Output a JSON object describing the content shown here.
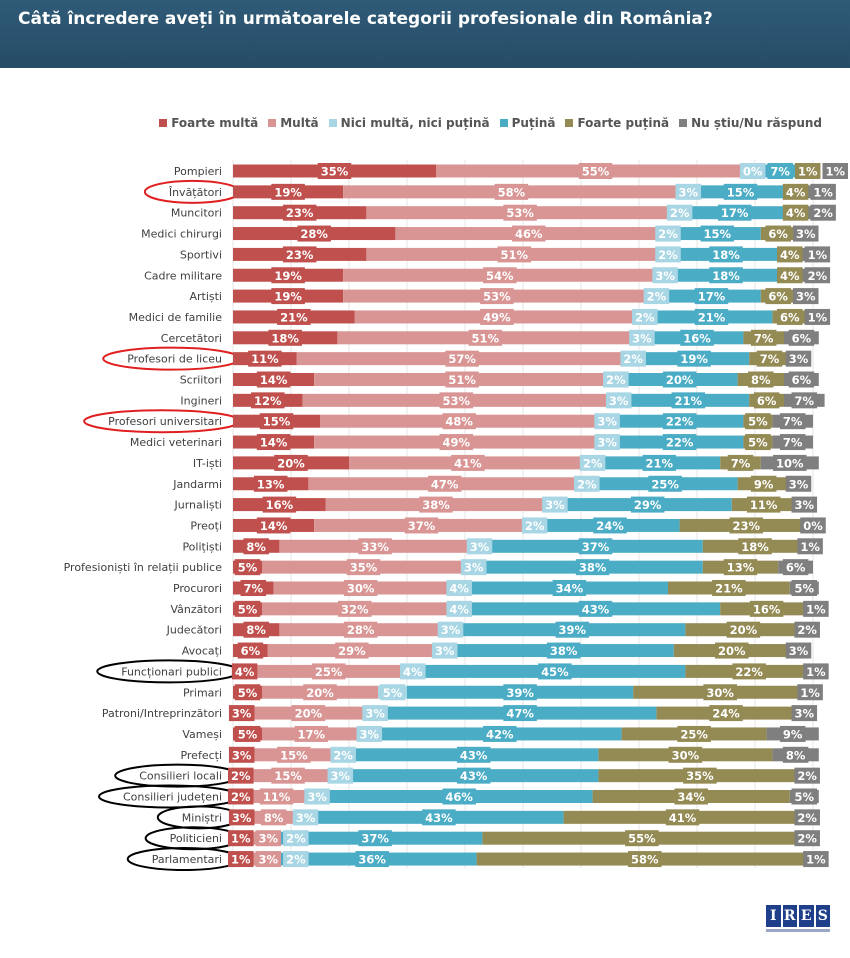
{
  "header": {
    "title": "Câtă încredere aveți în următoarele categorii profesionale din România?"
  },
  "logo": {
    "text": "IRES",
    "letters": [
      "I",
      "R",
      "E",
      "S"
    ]
  },
  "chart_data": {
    "type": "bar",
    "orientation": "horizontal",
    "stacked": true,
    "unit": "%",
    "xlim": [
      0,
      100
    ],
    "grid": true,
    "legend_position": "top-right",
    "title": "Câtă încredere aveți în următoarele categorii profesionale din România?",
    "categories": [
      "Pompieri",
      "Învățători",
      "Muncitori",
      "Medici chirurgi",
      "Sportivi",
      "Cadre militare",
      "Artiști",
      "Medici de familie",
      "Cercetători",
      "Profesori de liceu",
      "Scriitori",
      "Ingineri",
      "Profesori universitari",
      "Medici veterinari",
      "IT-iști",
      "Jandarmi",
      "Jurnaliști",
      "Preoți",
      "Polițiști",
      "Profesioniști în relații publice",
      "Procurori",
      "Vânzători",
      "Judecători",
      "Avocați",
      "Funcționari publici",
      "Primari",
      "Patroni/Intreprinzători",
      "Vameși",
      "Prefecți",
      "Consilieri locali",
      "Consilieri județeni",
      "Miniștri",
      "Politicieni",
      "Parlamentari"
    ],
    "highlights": {
      "Învățători": "#e02020",
      "Profesori de liceu": "#e02020",
      "Profesori universitari": "#e02020",
      "Funcționari publici": "#000000",
      "Consilieri locali": "#000000",
      "Consilieri județeni": "#000000",
      "Miniștri": "#000000",
      "Politicieni": "#000000",
      "Parlamentari": "#000000"
    },
    "series": [
      {
        "name": "Foarte multă",
        "color": "#c0504d",
        "values": [
          35,
          19,
          23,
          28,
          23,
          19,
          19,
          21,
          18,
          11,
          14,
          12,
          15,
          14,
          20,
          13,
          16,
          14,
          8,
          5,
          7,
          5,
          8,
          6,
          4,
          5,
          3,
          5,
          3,
          2,
          2,
          3,
          1,
          1
        ]
      },
      {
        "name": "Multă",
        "color": "#d99594",
        "values": [
          55,
          58,
          53,
          46,
          51,
          54,
          53,
          49,
          51,
          57,
          51,
          53,
          48,
          49,
          41,
          47,
          38,
          37,
          33,
          35,
          30,
          32,
          28,
          29,
          25,
          20,
          20,
          17,
          15,
          15,
          11,
          8,
          3,
          3
        ]
      },
      {
        "name": "Nici multă, nici puțină",
        "color": "#a8d6e4",
        "values": [
          0,
          3,
          2,
          2,
          2,
          3,
          2,
          2,
          3,
          2,
          2,
          3,
          3,
          3,
          2,
          2,
          3,
          2,
          3,
          3,
          4,
          4,
          3,
          3,
          4,
          5,
          3,
          3,
          2,
          3,
          3,
          3,
          2,
          2
        ]
      },
      {
        "name": "Puțină",
        "color": "#4bacc6",
        "values": [
          7,
          15,
          17,
          15,
          18,
          18,
          17,
          21,
          16,
          19,
          20,
          21,
          22,
          22,
          21,
          25,
          29,
          24,
          37,
          38,
          34,
          43,
          39,
          38,
          45,
          39,
          47,
          42,
          43,
          43,
          46,
          43,
          37,
          36
        ]
      },
      {
        "name": "Foarte puțină",
        "color": "#948a54",
        "values": [
          1,
          4,
          4,
          6,
          4,
          4,
          6,
          6,
          7,
          7,
          8,
          6,
          5,
          5,
          7,
          9,
          11,
          23,
          18,
          13,
          21,
          16,
          20,
          20,
          22,
          30,
          24,
          25,
          30,
          35,
          34,
          41,
          55,
          58
        ]
      },
      {
        "name": "Nu știu/Nu răspund",
        "color": "#7f7f7f",
        "values": [
          1,
          1,
          2,
          3,
          1,
          2,
          3,
          1,
          6,
          3,
          6,
          7,
          7,
          7,
          10,
          3,
          3,
          0,
          1,
          6,
          5,
          1,
          2,
          3,
          1,
          1,
          3,
          9,
          8,
          2,
          5,
          2,
          2,
          1
        ]
      }
    ]
  }
}
